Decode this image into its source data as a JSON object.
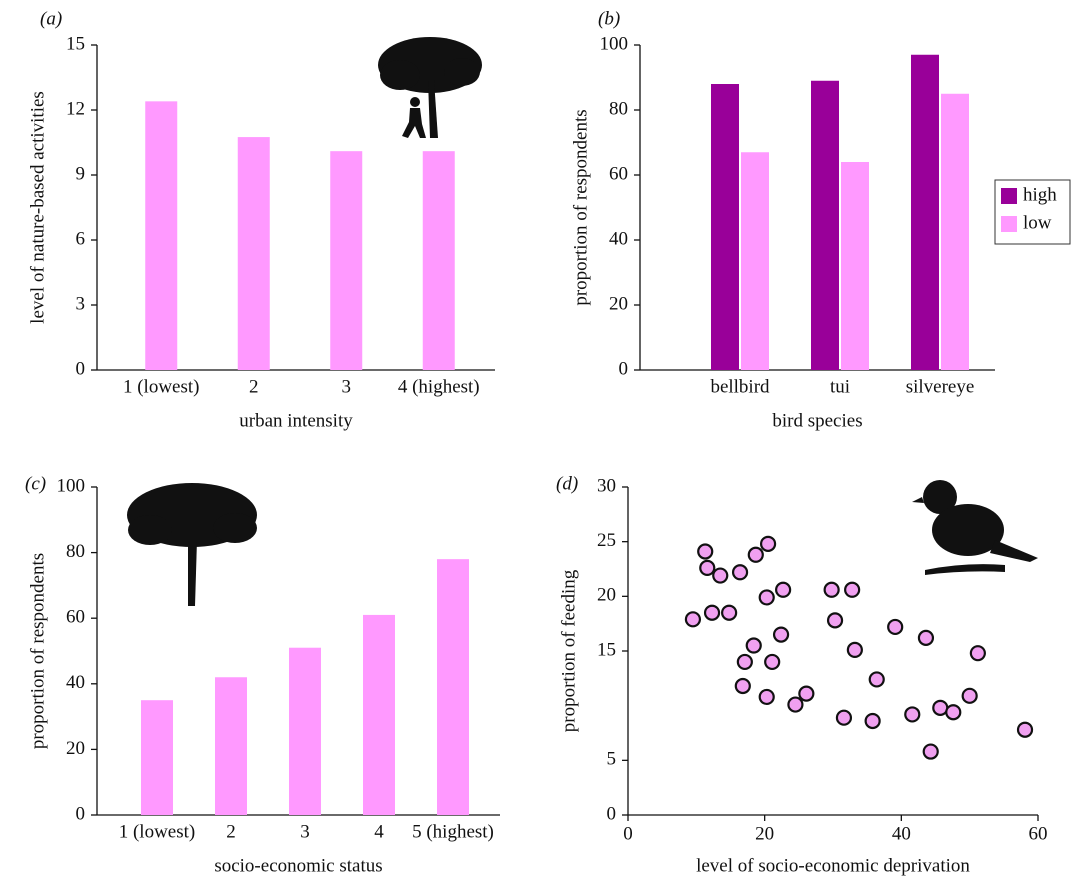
{
  "chart_data": [
    {
      "type": "bar",
      "panel": "(a)",
      "x_label": "urban intensity",
      "y_label": "level of nature-based activities",
      "categories": [
        "1 (lowest)",
        "2",
        "3",
        "4 (highest)"
      ],
      "values": [
        12.4,
        10.75,
        10.1,
        10.1
      ],
      "color": "#ff99ff",
      "ylim": [
        0,
        15
      ],
      "yticks": [
        0,
        3,
        6,
        9,
        12,
        15
      ],
      "grid": false
    },
    {
      "type": "grouped_bar",
      "panel": "(b)",
      "x_label": "bird species",
      "y_label": "proportion of respondents",
      "categories": [
        "bellbird",
        "tui",
        "silvereye"
      ],
      "series": [
        {
          "name": "high",
          "color": "#990099",
          "values": [
            88,
            89,
            97
          ]
        },
        {
          "name": "low",
          "color": "#ff99ff",
          "values": [
            67,
            64,
            85
          ]
        }
      ],
      "ylim": [
        0,
        100
      ],
      "yticks": [
        0,
        20,
        40,
        60,
        80,
        100
      ],
      "grid": false,
      "legend": "right"
    },
    {
      "type": "bar",
      "panel": "(c)",
      "x_label": "socio-economic status",
      "y_label": "proportion of respondents",
      "categories": [
        "1 (lowest)",
        "2",
        "3",
        "4",
        "5 (highest)"
      ],
      "values": [
        35,
        42,
        51,
        61,
        78
      ],
      "color": "#ff99ff",
      "ylim": [
        0,
        100
      ],
      "yticks": [
        0,
        20,
        40,
        60,
        80,
        100
      ],
      "grid": false
    },
    {
      "type": "scatter",
      "panel": "(d)",
      "x_label": "level of socio-economic deprivation",
      "y_label": "proportion of feeding",
      "x": [
        9.5,
        11.3,
        11.6,
        13.5,
        12.3,
        14.8,
        16.4,
        18.7,
        20.5,
        20.3,
        22.7,
        18.4,
        17.1,
        16.8,
        21.1,
        20.3,
        22.4,
        26.1,
        24.5,
        29.8,
        32.8,
        30.3,
        33.2,
        31.6,
        36.4,
        35.8,
        39.1,
        41.6,
        43.6,
        45.7,
        47.6,
        50.0,
        51.2,
        44.3,
        58.1
      ],
      "values": [
        17.9,
        24.1,
        22.6,
        21.9,
        18.5,
        18.5,
        22.2,
        23.8,
        24.8,
        19.9,
        20.6,
        15.5,
        14.0,
        11.8,
        14.0,
        10.8,
        16.5,
        11.1,
        10.1,
        20.6,
        20.6,
        17.8,
        15.1,
        8.9,
        12.4,
        8.6,
        17.2,
        9.2,
        16.2,
        9.8,
        9.4,
        10.9,
        14.8,
        5.8,
        7.8
      ],
      "color": "#f0a0f0",
      "xlim": [
        0,
        60
      ],
      "xticks": [
        0,
        20,
        40,
        60
      ],
      "ylim": [
        0,
        30
      ],
      "yticks": [
        0,
        5,
        15,
        20,
        25,
        30
      ],
      "grid": false
    }
  ]
}
